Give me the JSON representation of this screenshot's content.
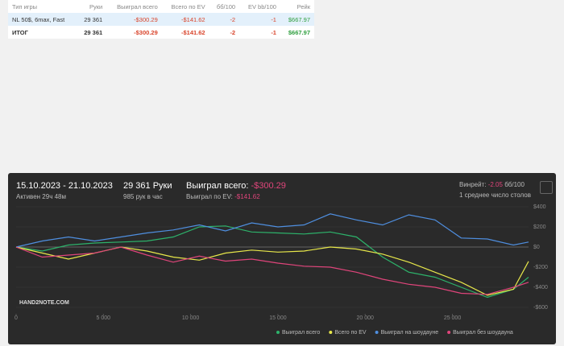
{
  "table": {
    "columns": [
      "Тип игры",
      "Руки",
      "Выиграл всего",
      "Всего по EV",
      "бб/100",
      "EV bb/100",
      "Рейк"
    ],
    "rows": [
      [
        "NL 50$, 6max, Fast",
        "29 361",
        "-$300.29",
        "-$141.62",
        "-2",
        "-1",
        "$667.97"
      ],
      [
        "ИТОГ",
        "29 361",
        "-$300.29",
        "-$141.62",
        "-2",
        "-1",
        "$667.97"
      ]
    ]
  },
  "summary": {
    "dates": "15.10.2023 - 21.10.2023",
    "active": "Активен 29ч 48м",
    "hands": "29 361 Руки",
    "per_hour": "985 рук в час",
    "won_label": "Выиграл всего:",
    "won_value": "-$300.29",
    "ev_label": "Выиграл по EV:",
    "ev_value": "-$141.62",
    "winrate_label": "Винрейт:",
    "winrate_value": "-2.05",
    "winrate_unit": "бб/100",
    "tables": "1 среднее число столов",
    "logo": "HAND2NOTE.COM"
  },
  "chart_data": {
    "type": "line",
    "x": [
      0,
      1500,
      3000,
      4500,
      6000,
      7500,
      9000,
      10500,
      12000,
      13500,
      15000,
      16500,
      18000,
      19500,
      21000,
      22500,
      24000,
      25500,
      27000,
      28500,
      29361
    ],
    "series": [
      {
        "name": "Выиграл всего",
        "color": "#2db36b",
        "values": [
          0,
          -40,
          20,
          40,
          50,
          60,
          100,
          200,
          210,
          150,
          140,
          130,
          150,
          100,
          -100,
          -250,
          -300,
          -400,
          -500,
          -420,
          -300
        ]
      },
      {
        "name": "Всего по EV",
        "color": "#e8e84a",
        "values": [
          0,
          -60,
          -120,
          -60,
          0,
          -40,
          -100,
          -130,
          -60,
          -30,
          -50,
          -40,
          0,
          -20,
          -70,
          -150,
          -250,
          -350,
          -480,
          -420,
          -142
        ]
      },
      {
        "name": "Выиграл на шоудауне",
        "color": "#4f8fe0",
        "values": [
          0,
          60,
          100,
          60,
          100,
          140,
          170,
          220,
          160,
          240,
          200,
          220,
          330,
          270,
          220,
          320,
          270,
          90,
          80,
          20,
          50
        ]
      },
      {
        "name": "Выиграл без шоудауна",
        "color": "#e0457b",
        "values": [
          0,
          -100,
          -80,
          -60,
          0,
          -80,
          -150,
          -90,
          -140,
          -120,
          -160,
          -190,
          -200,
          -250,
          -320,
          -370,
          -400,
          -460,
          -470,
          -400,
          -350
        ]
      }
    ],
    "xlim": [
      0,
      29361
    ],
    "xticks": [
      0,
      {
        "value": 5000,
        "label": "5 000"
      },
      {
        "value": 10000,
        "label": "10 000"
      },
      {
        "value": 15000,
        "label": "15 000"
      },
      {
        "value": 20000,
        "label": "20 000"
      },
      {
        "value": 25000,
        "label": "25 000"
      }
    ],
    "ylim": [
      -600,
      400
    ],
    "yticks": [
      {
        "value": 400,
        "label": "$400"
      },
      {
        "value": 200,
        "label": "$200"
      },
      {
        "value": 0,
        "label": "$0"
      },
      {
        "value": -200,
        "label": "-$200"
      },
      {
        "value": -400,
        "label": "-$400"
      },
      {
        "value": -600,
        "label": "-$600"
      }
    ],
    "grid": true
  }
}
